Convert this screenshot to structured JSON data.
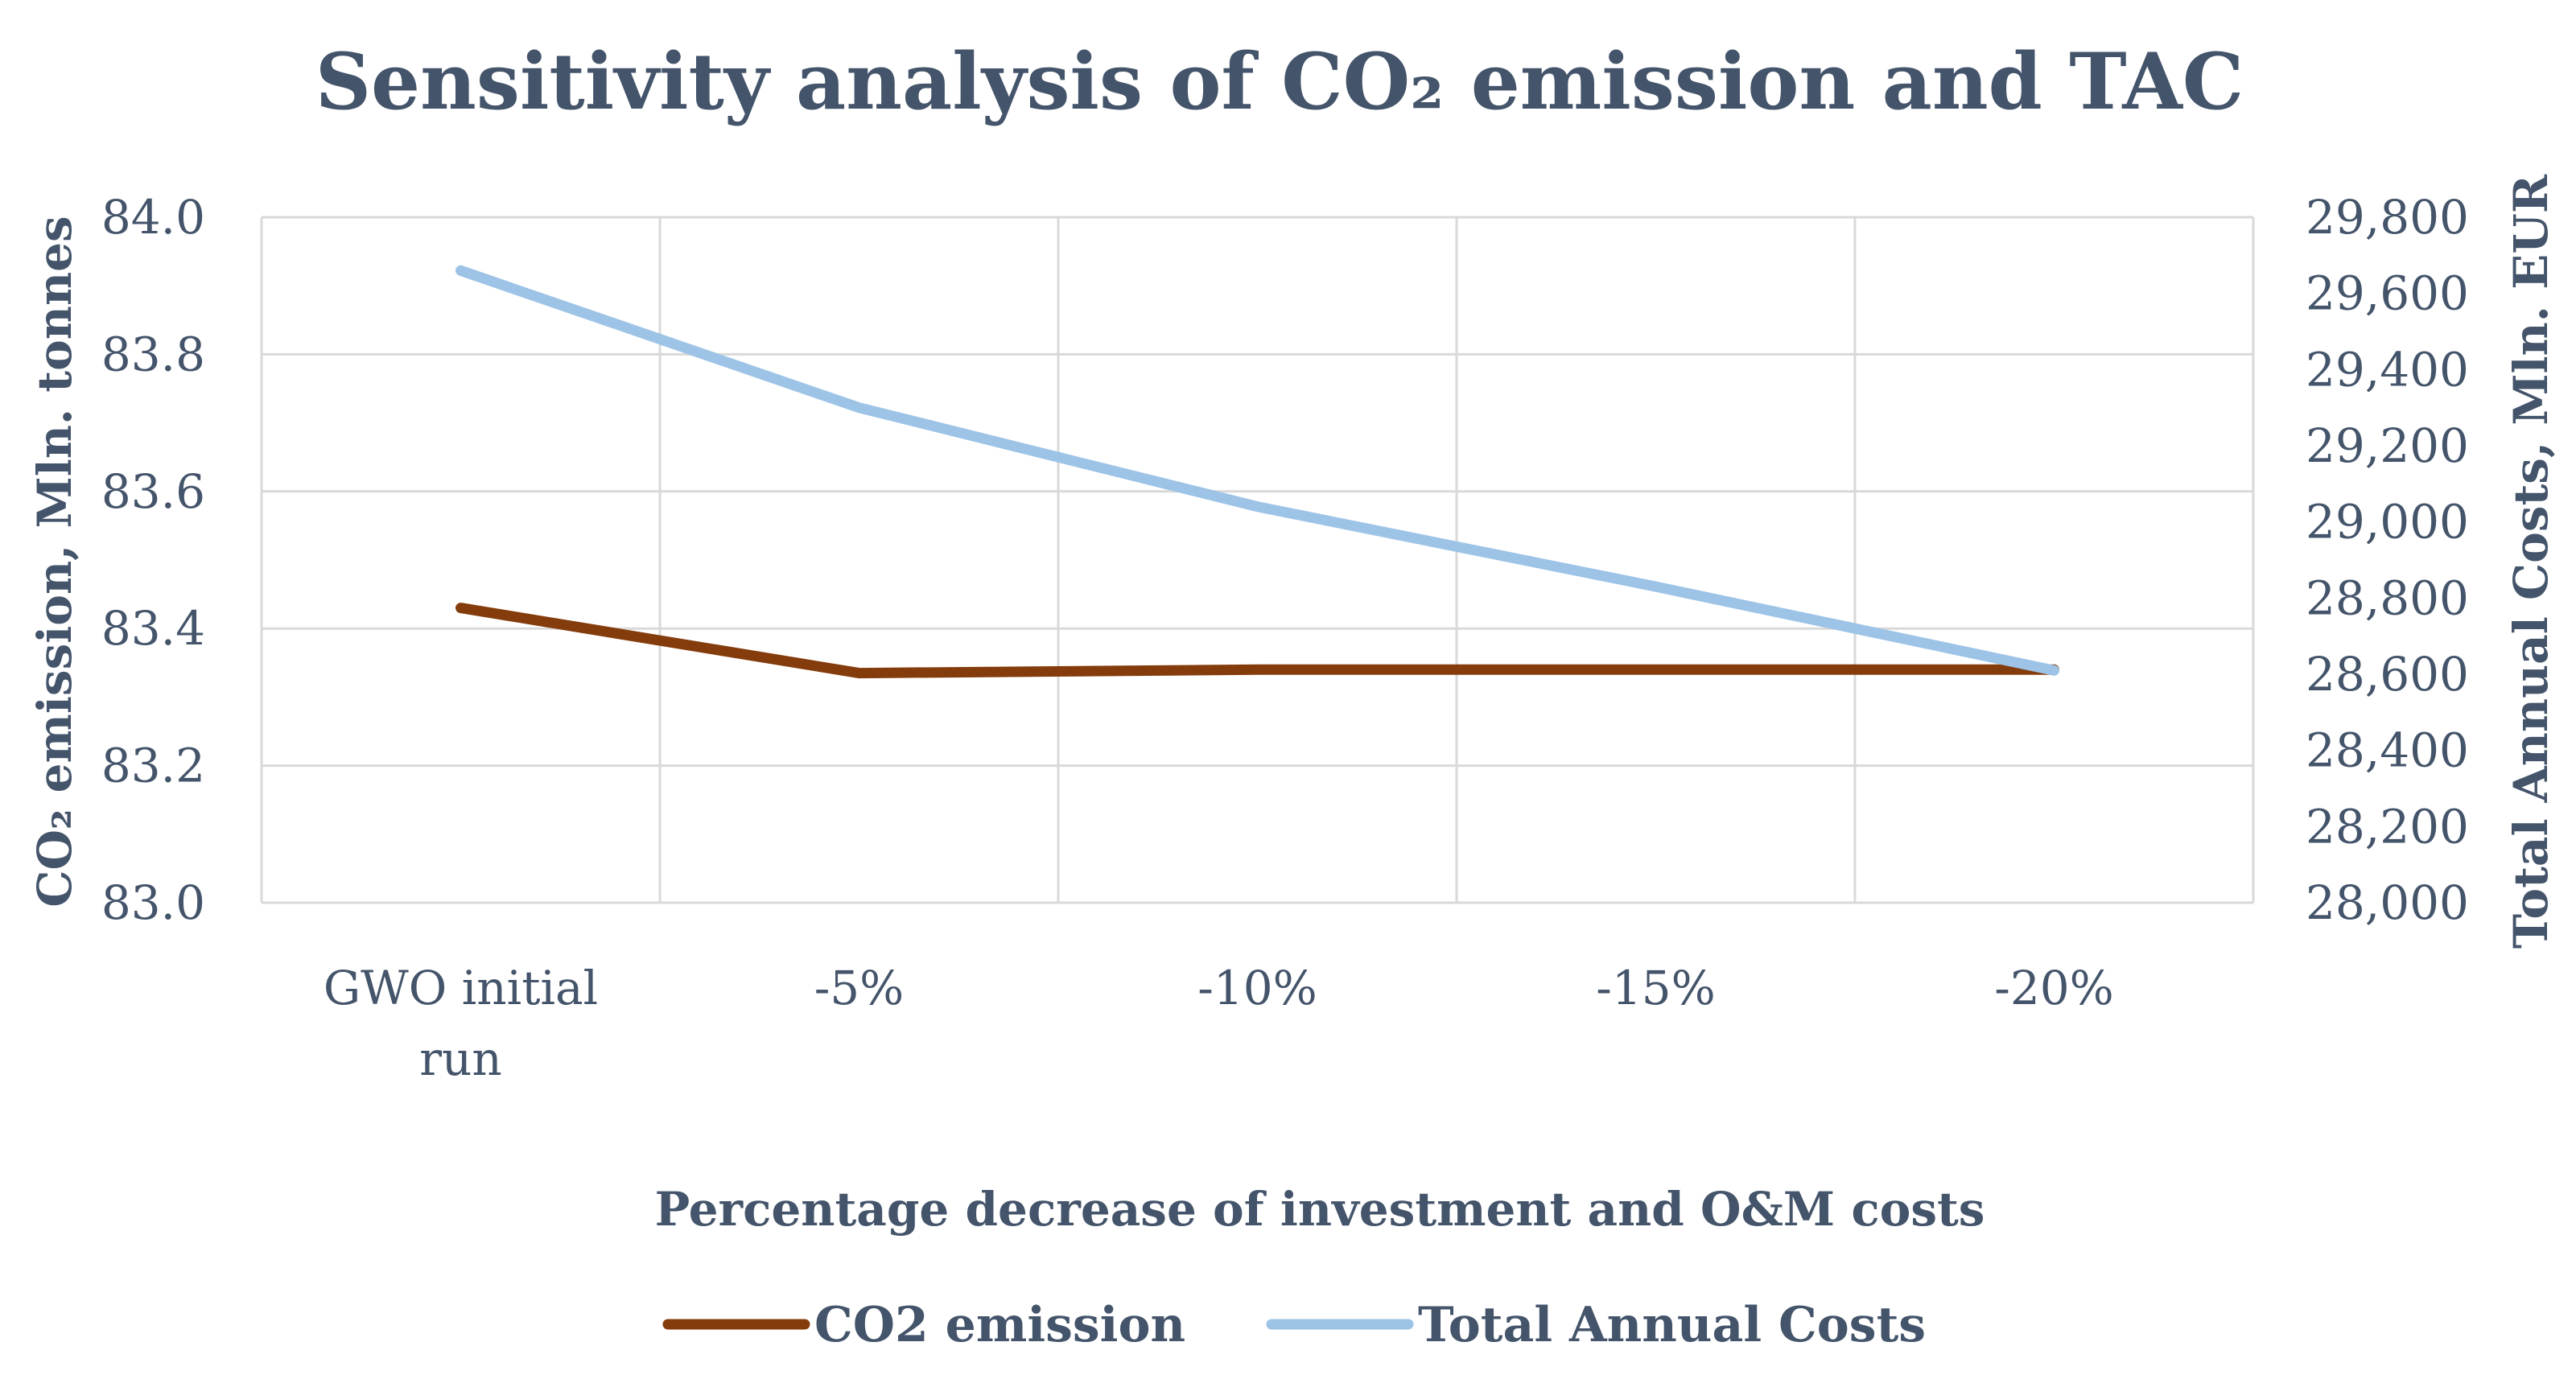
{
  "chart_data": {
    "type": "line",
    "title": "Sensitivity analysis of CO₂ emission and TAC",
    "xlabel": "Percentage decrease of investment and O&M costs",
    "ylabel_left": "CO₂ emission, Mln. tonnes",
    "ylabel_right": "Total Annual Costs, Mln. EUR",
    "categories": [
      [
        "GWO initial",
        "run"
      ],
      [
        "-5%"
      ],
      [
        "-10%"
      ],
      [
        "-15%"
      ],
      [
        "-20%"
      ]
    ],
    "ylim_left": [
      83.0,
      84.0
    ],
    "yticks_left": [
      "83.0",
      "83.2",
      "83.4",
      "83.6",
      "83.8",
      "84.0"
    ],
    "ylim_right": [
      28000,
      29800
    ],
    "yticks_right": [
      "28,000",
      "28,200",
      "28,400",
      "28,600",
      "28,800",
      "29,000",
      "29,200",
      "29,400",
      "29,600",
      "29,800"
    ],
    "grid": true,
    "legend_position": "bottom",
    "series": [
      {
        "name": "CO2 emission",
        "axis": "left",
        "color": "#843c0c",
        "values": [
          83.43,
          83.335,
          83.34,
          83.34,
          83.34
        ]
      },
      {
        "name": "Total Annual Costs",
        "axis": "right",
        "color": "#9dc3e6",
        "values": [
          29660,
          29300,
          29040,
          28830,
          28610
        ]
      }
    ]
  }
}
